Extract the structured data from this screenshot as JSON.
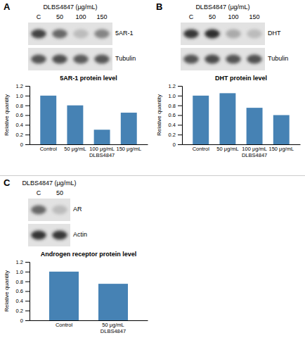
{
  "chart_data": [
    {
      "type": "bar",
      "panel_label": "A",
      "title": "5AR-1 protein level",
      "ylabel": "Relative quantity",
      "categories": [
        "Control",
        "50 μg/mL",
        "100 μg/mL\nDLBS4847",
        "150 μg/mL"
      ],
      "values": [
        1.0,
        0.8,
        0.3,
        0.65
      ],
      "ylim": [
        0,
        1.2
      ],
      "yticks": [
        0,
        0.2,
        0.4,
        0.6,
        0.8,
        {
          "value": 1.0,
          "label": "1.0"
        },
        1.2
      ],
      "blot": {
        "title": "DLBS4847 (μg/mL)",
        "lanes": [
          "C",
          "50",
          "100",
          "150"
        ],
        "bands": [
          {
            "name": "5AR-1",
            "values": [
              0.85,
              0.65,
              0.2,
              0.5
            ]
          },
          {
            "name": "Tubulin",
            "values": [
              0.75,
              0.78,
              0.72,
              0.74
            ]
          }
        ]
      }
    },
    {
      "type": "bar",
      "panel_label": "B",
      "title": "DHT protein level",
      "ylabel": "Relative quantity",
      "categories": [
        "Control",
        "50 μg/mL",
        "100 μg/mL\nDLBS4847",
        "150 μg/mL"
      ],
      "values": [
        1.0,
        1.05,
        0.75,
        0.6
      ],
      "ylim": [
        0,
        1.2
      ],
      "yticks": [
        0,
        0.2,
        0.4,
        0.6,
        0.8,
        {
          "value": 1.0,
          "label": "1.0"
        },
        1.2
      ],
      "blot": {
        "title": "DLBS4847 (μg/mL)",
        "lanes": [
          "C",
          "50",
          "100",
          "150"
        ],
        "bands": [
          {
            "name": "DHT",
            "values": [
              0.9,
              0.95,
              0.3,
              0.2
            ]
          },
          {
            "name": "Tubulin",
            "values": [
              0.75,
              0.8,
              0.75,
              0.77
            ]
          }
        ]
      }
    },
    {
      "type": "bar",
      "panel_label": "C",
      "title": "Androgen receptor protein level",
      "ylabel": "Relative quantity",
      "categories": [
        "Control",
        "50 μg/mL\nDLBS4847"
      ],
      "values": [
        1.0,
        0.75
      ],
      "ylim": [
        0,
        1.2
      ],
      "yticks": [
        0,
        0.2,
        0.4,
        0.6,
        0.8,
        {
          "value": 1.0,
          "label": "1.0"
        },
        1.2
      ],
      "blot": {
        "title": "DLBS4847 (μg/mL)",
        "lanes": [
          "C",
          "50"
        ],
        "bands": [
          {
            "name": "AR",
            "values": [
              0.65,
              0.2
            ]
          },
          {
            "name": "Actin",
            "values": [
              0.92,
              0.9
            ]
          }
        ]
      }
    }
  ]
}
